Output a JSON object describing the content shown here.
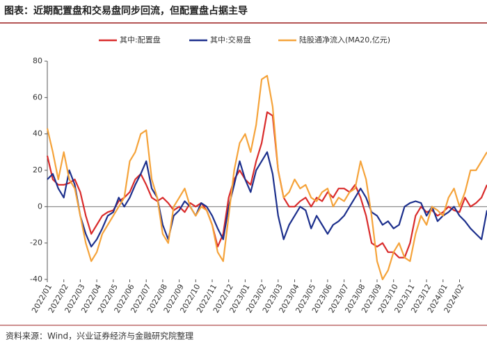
{
  "chart_data": {
    "type": "line",
    "title": "图表：近期配置盘和交易盘同步回流，但配置盘占据主导",
    "source": "资料来源：Wind，兴业证券经济与金融研究院整理",
    "categories": [
      "2022/01",
      null,
      null,
      "2022/02",
      null,
      null,
      "2022/03",
      null,
      null,
      "2022/04",
      null,
      null,
      "2022/05",
      null,
      null,
      "2022/06",
      null,
      null,
      "2022/07",
      null,
      null,
      "2022/08",
      null,
      null,
      "2022/09",
      null,
      null,
      "2022/10",
      null,
      null,
      "2022/11",
      null,
      null,
      "2022/12",
      null,
      null,
      "2023/01",
      null,
      null,
      "2023/02",
      null,
      null,
      "2023/03",
      null,
      null,
      "2023/04",
      null,
      null,
      "2023/05",
      null,
      null,
      "2023/06",
      null,
      null,
      "2023/07",
      null,
      null,
      "2023/08",
      null,
      null,
      "2023/09",
      null,
      null,
      "2023/10",
      null,
      null,
      "2023/11",
      null,
      null,
      "2023/12",
      null,
      null,
      "2024/01",
      null,
      null,
      "2024/02",
      null,
      null,
      null,
      null,
      null
    ],
    "series": [
      {
        "name": "其中:配置盘",
        "color": "#d92b2b",
        "values": [
          28,
          15,
          12,
          12,
          13,
          15,
          8,
          -5,
          -15,
          -10,
          -5,
          -3,
          -2,
          3,
          5,
          8,
          15,
          18,
          12,
          5,
          3,
          5,
          2,
          -2,
          0,
          -3,
          2,
          0,
          2,
          -2,
          -10,
          -22,
          -15,
          5,
          15,
          20,
          15,
          12,
          25,
          35,
          52,
          50,
          20,
          5,
          0,
          0,
          3,
          5,
          0,
          5,
          3,
          8,
          5,
          10,
          10,
          8,
          12,
          5,
          -5,
          -20,
          -22,
          -20,
          -25,
          -25,
          -28,
          -28,
          -20,
          -5,
          0,
          -3,
          -2,
          -5,
          -3,
          0,
          -2,
          -3,
          5,
          0,
          2,
          5,
          12
        ]
      },
      {
        "name": "其中:交易盘",
        "color": "#1c2f8c",
        "values": [
          15,
          18,
          10,
          5,
          20,
          12,
          -5,
          -15,
          -22,
          -18,
          -12,
          -5,
          -3,
          5,
          0,
          5,
          12,
          18,
          25,
          10,
          5,
          -10,
          -18,
          -5,
          -2,
          3,
          0,
          -5,
          2,
          0,
          -5,
          -12,
          -18,
          0,
          12,
          25,
          15,
          8,
          20,
          25,
          30,
          18,
          -5,
          -18,
          -10,
          -5,
          0,
          -2,
          -12,
          -5,
          -10,
          -15,
          -10,
          -8,
          -5,
          0,
          5,
          10,
          5,
          -3,
          -5,
          -10,
          -8,
          -12,
          -10,
          0,
          2,
          3,
          2,
          -5,
          0,
          -8,
          -5,
          -3,
          0,
          -5,
          -8,
          -12,
          -15,
          -18,
          -2
        ]
      },
      {
        "name": "陆股通净流入(MA20,亿元)",
        "color": "#f5a33a",
        "values": [
          43,
          30,
          15,
          30,
          15,
          10,
          -5,
          -20,
          -30,
          -25,
          -15,
          -10,
          -5,
          0,
          5,
          25,
          30,
          40,
          42,
          15,
          5,
          -15,
          -20,
          0,
          5,
          10,
          0,
          -5,
          0,
          -2,
          -10,
          -25,
          -30,
          -5,
          20,
          35,
          40,
          30,
          45,
          70,
          72,
          55,
          20,
          5,
          8,
          15,
          10,
          12,
          5,
          3,
          8,
          10,
          0,
          5,
          3,
          8,
          10,
          25,
          15,
          -5,
          -30,
          -40,
          -35,
          -25,
          -20,
          -28,
          -30,
          -15,
          -5,
          -10,
          0,
          -2,
          -5,
          5,
          10,
          0,
          8,
          20,
          20,
          25,
          30
        ]
      }
    ],
    "ylim": [
      -40,
      80
    ],
    "yticks": [
      -40,
      -20,
      0,
      20,
      40,
      60,
      80
    ]
  }
}
